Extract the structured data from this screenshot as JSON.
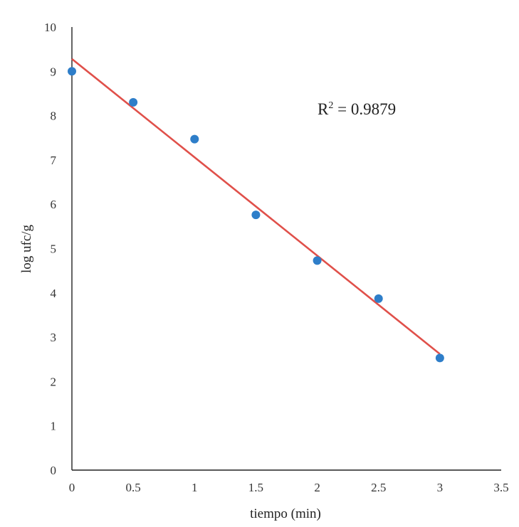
{
  "chart_data": {
    "type": "scatter",
    "title": "",
    "xlabel": "tiempo (min)",
    "ylabel": "log ufc/g",
    "xlim": [
      0,
      3.5
    ],
    "ylim": [
      0,
      10
    ],
    "x_ticks": [
      "0",
      "0.5",
      "1",
      "1.5",
      "2",
      "2.5",
      "3",
      "3.5"
    ],
    "y_ticks": [
      "0",
      "1",
      "2",
      "3",
      "4",
      "5",
      "6",
      "7",
      "8",
      "9",
      "10"
    ],
    "grid": false,
    "legend": "none",
    "points": [
      {
        "x": 0,
        "y": 9.0
      },
      {
        "x": 0.5,
        "y": 8.3
      },
      {
        "x": 1.0,
        "y": 7.47
      },
      {
        "x": 1.5,
        "y": 5.76
      },
      {
        "x": 2.0,
        "y": 4.73
      },
      {
        "x": 2.5,
        "y": 3.87
      },
      {
        "x": 3.0,
        "y": 2.53
      }
    ],
    "trendline": {
      "type": "linear",
      "start": {
        "x": 0,
        "y": 9.28
      },
      "end": {
        "x": 3.0,
        "y": 2.62
      },
      "color": "#e0504a"
    },
    "annotation": {
      "base": "R",
      "sup": "2",
      "value": " = 0.9879"
    },
    "point_color": "#2e7ec9"
  }
}
